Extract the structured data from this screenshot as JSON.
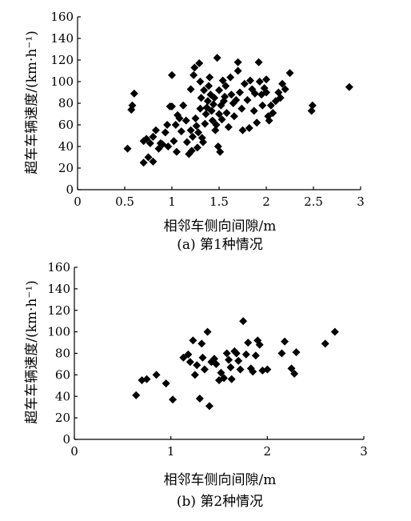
{
  "chart_data": [
    {
      "type": "scatter",
      "caption": "(a) 第1种情况",
      "xlabel": "相邻车侧向间隙/m",
      "ylabel": "超车车辆速度/(km·h⁻¹)",
      "xlim": [
        0,
        3
      ],
      "ylim": [
        0,
        160
      ],
      "xticks": [
        "0",
        "0.5",
        "1",
        "1.5",
        "2",
        "2.5",
        "3"
      ],
      "xtick_values": [
        0,
        0.5,
        1,
        1.5,
        2,
        2.5,
        3
      ],
      "yticks": [
        "0",
        "20",
        "40",
        "60",
        "80",
        "100",
        "120",
        "140",
        "160"
      ],
      "ytick_values": [
        0,
        20,
        40,
        60,
        80,
        100,
        120,
        140,
        160
      ],
      "grid": false,
      "marker": "diamond",
      "points": [
        [
          0.53,
          38
        ],
        [
          0.57,
          74
        ],
        [
          0.58,
          78
        ],
        [
          0.6,
          89
        ],
        [
          0.7,
          25
        ],
        [
          0.7,
          45
        ],
        [
          0.73,
          47
        ],
        [
          0.75,
          30
        ],
        [
          0.77,
          43
        ],
        [
          0.8,
          26
        ],
        [
          0.8,
          49
        ],
        [
          0.83,
          55
        ],
        [
          0.86,
          38
        ],
        [
          0.88,
          43
        ],
        [
          0.9,
          42
        ],
        [
          0.93,
          53
        ],
        [
          0.95,
          60
        ],
        [
          0.96,
          40
        ],
        [
          0.98,
          77
        ],
        [
          1.0,
          77
        ],
        [
          1.0,
          106
        ],
        [
          1.02,
          45
        ],
        [
          1.04,
          60
        ],
        [
          1.05,
          35
        ],
        [
          1.06,
          69
        ],
        [
          1.08,
          66
        ],
        [
          1.1,
          54
        ],
        [
          1.12,
          78
        ],
        [
          1.15,
          64
        ],
        [
          1.16,
          44
        ],
        [
          1.18,
          33
        ],
        [
          1.2,
          55
        ],
        [
          1.2,
          93
        ],
        [
          1.21,
          36
        ],
        [
          1.22,
          49
        ],
        [
          1.23,
          106
        ],
        [
          1.24,
          113
        ],
        [
          1.25,
          66
        ],
        [
          1.26,
          59
        ],
        [
          1.27,
          39
        ],
        [
          1.28,
          53
        ],
        [
          1.29,
          117
        ],
        [
          1.3,
          100
        ],
        [
          1.3,
          75
        ],
        [
          1.31,
          85
        ],
        [
          1.32,
          48
        ],
        [
          1.33,
          44
        ],
        [
          1.34,
          92
        ],
        [
          1.35,
          61
        ],
        [
          1.36,
          70
        ],
        [
          1.37,
          76
        ],
        [
          1.38,
          82
        ],
        [
          1.39,
          96
        ],
        [
          1.4,
          104
        ],
        [
          1.41,
          88
        ],
        [
          1.42,
          73
        ],
        [
          1.43,
          64
        ],
        [
          1.44,
          79
        ],
        [
          1.45,
          85
        ],
        [
          1.46,
          55
        ],
        [
          1.47,
          60
        ],
        [
          1.48,
          122
        ],
        [
          1.49,
          40
        ],
        [
          1.5,
          92
        ],
        [
          1.5,
          70
        ],
        [
          1.51,
          35
        ],
        [
          1.52,
          78
        ],
        [
          1.53,
          65
        ],
        [
          1.54,
          101
        ],
        [
          1.55,
          82
        ],
        [
          1.56,
          86
        ],
        [
          1.57,
          96
        ],
        [
          1.58,
          71
        ],
        [
          1.6,
          58
        ],
        [
          1.62,
          104
        ],
        [
          1.63,
          88
        ],
        [
          1.65,
          80
        ],
        [
          1.66,
          68
        ],
        [
          1.68,
          83
        ],
        [
          1.7,
          118
        ],
        [
          1.7,
          110
        ],
        [
          1.72,
          90
        ],
        [
          1.74,
          75
        ],
        [
          1.75,
          55
        ],
        [
          1.77,
          98
        ],
        [
          1.8,
          83
        ],
        [
          1.82,
          57
        ],
        [
          1.83,
          101
        ],
        [
          1.85,
          93
        ],
        [
          1.87,
          73
        ],
        [
          1.88,
          89
        ],
        [
          1.9,
          62
        ],
        [
          1.92,
          118
        ],
        [
          1.93,
          100
        ],
        [
          1.95,
          88
        ],
        [
          1.96,
          78
        ],
        [
          1.98,
          94
        ],
        [
          2.0,
          90
        ],
        [
          2.0,
          102
        ],
        [
          2.02,
          68
        ],
        [
          2.03,
          64
        ],
        [
          2.05,
          78
        ],
        [
          2.07,
          71
        ],
        [
          2.1,
          82
        ],
        [
          2.13,
          90
        ],
        [
          2.15,
          85
        ],
        [
          2.17,
          98
        ],
        [
          2.2,
          93
        ],
        [
          2.25,
          108
        ],
        [
          2.48,
          73
        ],
        [
          2.49,
          78
        ],
        [
          2.88,
          95
        ]
      ]
    },
    {
      "type": "scatter",
      "caption": "(b) 第2种情况",
      "xlabel": "相邻车侧向间隙/m",
      "ylabel": "超车车辆速度/(km·h⁻¹)",
      "xlim": [
        0,
        3
      ],
      "ylim": [
        0,
        160
      ],
      "xticks": [
        "0",
        "1",
        "2",
        "3"
      ],
      "xtick_values": [
        0,
        1,
        2,
        3
      ],
      "yticks": [
        "0",
        "20",
        "40",
        "60",
        "80",
        "100",
        "120",
        "140",
        "160"
      ],
      "ytick_values": [
        0,
        20,
        40,
        60,
        80,
        100,
        120,
        140,
        160
      ],
      "grid": false,
      "marker": "diamond",
      "points": [
        [
          0.64,
          41
        ],
        [
          0.7,
          55
        ],
        [
          0.75,
          56
        ],
        [
          0.85,
          60
        ],
        [
          0.95,
          52
        ],
        [
          1.02,
          37
        ],
        [
          1.13,
          76
        ],
        [
          1.18,
          79
        ],
        [
          1.2,
          72
        ],
        [
          1.23,
          92
        ],
        [
          1.25,
          60
        ],
        [
          1.27,
          69
        ],
        [
          1.3,
          38
        ],
        [
          1.32,
          89
        ],
        [
          1.33,
          76
        ],
        [
          1.35,
          65
        ],
        [
          1.38,
          100
        ],
        [
          1.4,
          31
        ],
        [
          1.42,
          72
        ],
        [
          1.45,
          75
        ],
        [
          1.47,
          70
        ],
        [
          1.5,
          55
        ],
        [
          1.52,
          62
        ],
        [
          1.55,
          57
        ],
        [
          1.58,
          80
        ],
        [
          1.6,
          74
        ],
        [
          1.62,
          67
        ],
        [
          1.63,
          56
        ],
        [
          1.66,
          82
        ],
        [
          1.68,
          80
        ],
        [
          1.7,
          73
        ],
        [
          1.72,
          65
        ],
        [
          1.75,
          110
        ],
        [
          1.78,
          79
        ],
        [
          1.8,
          90
        ],
        [
          1.83,
          66
        ],
        [
          1.85,
          63
        ],
        [
          1.88,
          78
        ],
        [
          1.9,
          92
        ],
        [
          1.92,
          88
        ],
        [
          1.95,
          64
        ],
        [
          2.0,
          65
        ],
        [
          2.15,
          80
        ],
        [
          2.18,
          91
        ],
        [
          2.25,
          66
        ],
        [
          2.28,
          61
        ],
        [
          2.3,
          81
        ],
        [
          2.6,
          89
        ],
        [
          2.7,
          100
        ]
      ]
    }
  ]
}
